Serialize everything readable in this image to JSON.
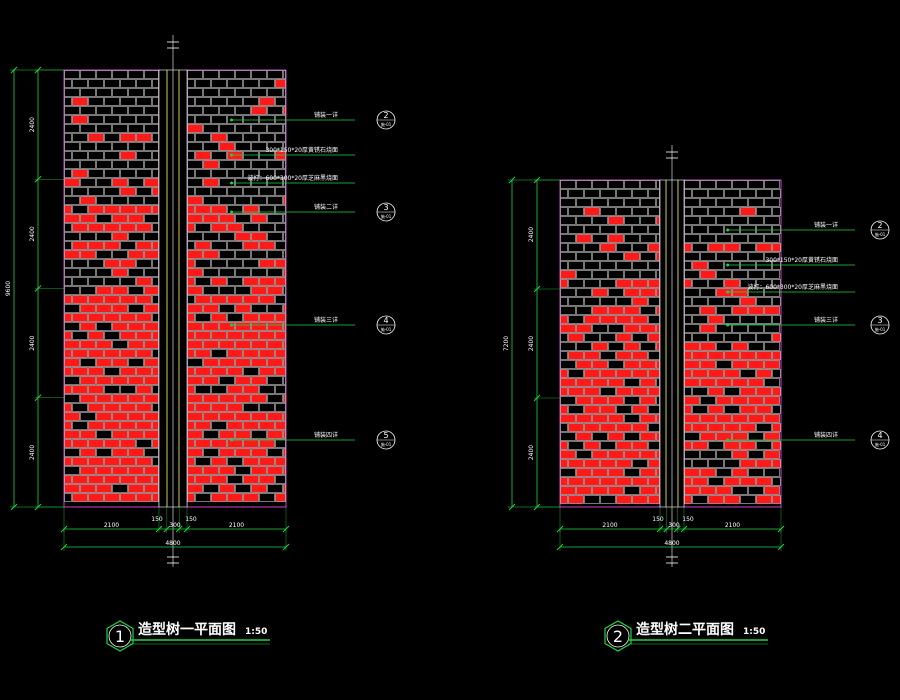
{
  "colors": {
    "background": "#000000",
    "mortar": "#c8c8c8",
    "brick_red": "#ff1a1a",
    "dim_line": "#21d43f",
    "text": "#ffffff",
    "panel_edge": "#ff55ff",
    "axis_line": "#ffff66"
  },
  "drawings": [
    {
      "id": "plan-1",
      "detail_number": "1",
      "title": "造型树一平面图",
      "scale": "1:50",
      "overall_height_label": "9600",
      "row_dims": [
        "2400",
        "2400",
        "2400",
        "2400"
      ],
      "bottom_dims": [
        "2100",
        "150",
        "300",
        "150",
        "2100"
      ],
      "overall_width_label": "4800",
      "callouts": [
        {
          "text": "铺装一详",
          "ref": "2",
          "sheet": "施-01"
        },
        {
          "text": "300*150*20厚黄锈石烧面",
          "ref": "",
          "sheet": ""
        },
        {
          "text": "波打：600*300*20厚芝麻黑烧面",
          "ref": "",
          "sheet": ""
        },
        {
          "text": "铺装二详",
          "ref": "3",
          "sheet": "施-01"
        },
        {
          "text": "铺装三详",
          "ref": "4",
          "sheet": "施-01"
        },
        {
          "text": "铺装四详",
          "ref": "5",
          "sheet": "施-01"
        }
      ]
    },
    {
      "id": "plan-2",
      "detail_number": "2",
      "title": "造型树二平面图",
      "scale": "1:50",
      "overall_height_label": "7200",
      "row_dims": [
        "2400",
        "2400",
        "2400"
      ],
      "bottom_dims": [
        "2100",
        "150",
        "300",
        "150",
        "2100"
      ],
      "overall_width_label": "4800",
      "callouts": [
        {
          "text": "铺装一详",
          "ref": "2",
          "sheet": "施-01"
        },
        {
          "text": "300*150*20厚黄锈石烧面",
          "ref": "",
          "sheet": ""
        },
        {
          "text": "波打：600*300*20厚芝麻黑烧面",
          "ref": "",
          "sheet": ""
        },
        {
          "text": "铺装三详",
          "ref": "3",
          "sheet": "施-01"
        },
        {
          "text": "铺装四详",
          "ref": "4",
          "sheet": "施-01"
        }
      ]
    }
  ]
}
